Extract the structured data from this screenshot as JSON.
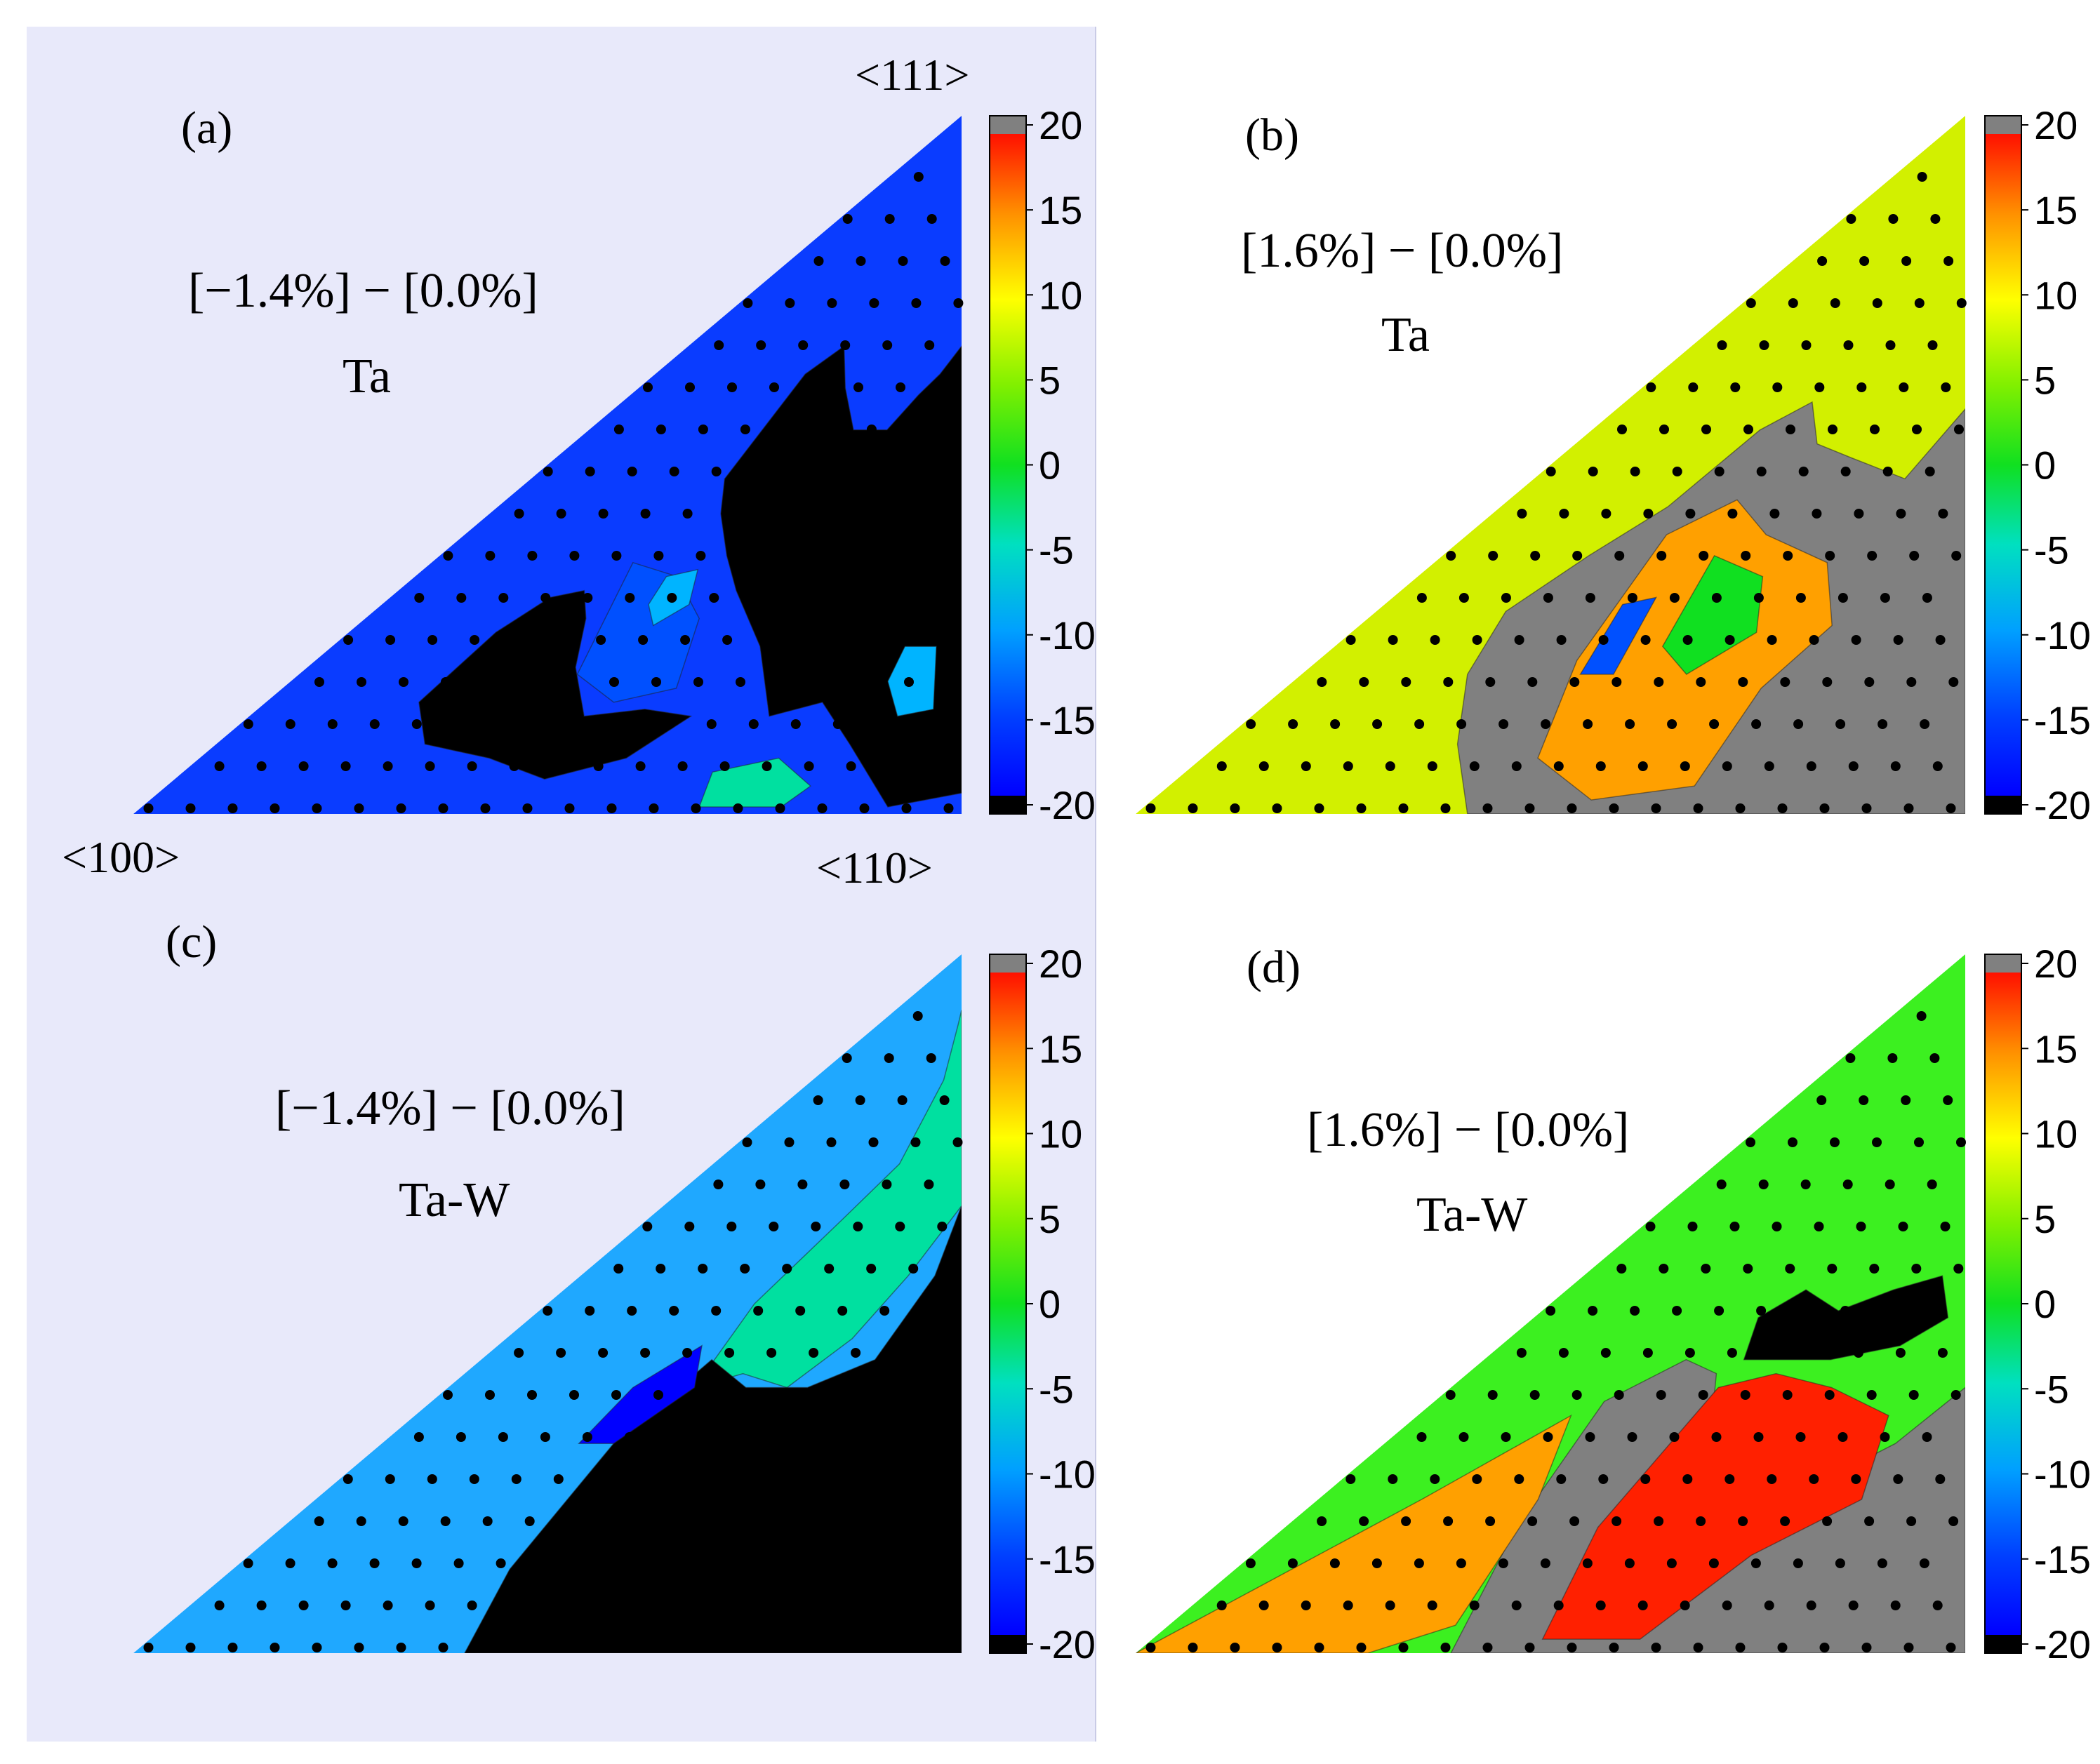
{
  "chart_data": [
    {
      "type": "heatmap",
      "panel_label": "(a)",
      "title": "[−1.4%] − [0.0%]",
      "material": "Ta",
      "corner_labels": {
        "top": "<111>",
        "left": "<100>",
        "right": "<110>"
      },
      "colorbar": {
        "min": -20,
        "max": 20,
        "ticks": [
          "20",
          "15",
          "10",
          "5",
          "0",
          "-5",
          "-10",
          "-15",
          "-20"
        ],
        "below_min_color": "#000000",
        "above_max_color": "#808080"
      },
      "background": "#0a3cff",
      "regions": [
        {
          "name": "black-region-large",
          "value": -25
        },
        {
          "name": "black-region-left",
          "value": -25
        },
        {
          "name": "blue-patch-center",
          "value": -15
        },
        {
          "name": "green-peak-center",
          "value": -8
        },
        {
          "name": "green-peak-right",
          "value": -10
        },
        {
          "name": "green-patch-bottom",
          "value": -5
        }
      ]
    },
    {
      "type": "heatmap",
      "panel_label": "(b)",
      "title": "[1.6%] − [0.0%]",
      "material": "Ta",
      "colorbar": {
        "min": -20,
        "max": 20,
        "ticks": [
          "20",
          "15",
          "10",
          "5",
          "0",
          "-5",
          "-10",
          "-15",
          "-20"
        ],
        "below_min_color": "#000000",
        "above_max_color": "#808080"
      },
      "background": "#d2f000",
      "regions": [
        {
          "name": "gray-region",
          "value": 25
        },
        {
          "name": "red-band",
          "value": 17
        },
        {
          "name": "green-pocket",
          "value": 0
        },
        {
          "name": "blue-pocket",
          "value": -15
        }
      ]
    },
    {
      "type": "heatmap",
      "panel_label": "(c)",
      "title": "[−1.4%] − [0.0%]",
      "material": "Ta-W",
      "colorbar": {
        "min": -20,
        "max": 20,
        "ticks": [
          "20",
          "15",
          "10",
          "5",
          "0",
          "-5",
          "-10",
          "-15",
          "-20"
        ],
        "below_min_color": "#000000",
        "above_max_color": "#808080"
      },
      "background": "#1fa8ff",
      "regions": [
        {
          "name": "green-upper-band",
          "value": -3
        },
        {
          "name": "black-region",
          "value": -25
        },
        {
          "name": "blue-border",
          "value": -18
        }
      ]
    },
    {
      "type": "heatmap",
      "panel_label": "(d)",
      "title": "[1.6%] − [0.0%]",
      "material": "Ta-W",
      "colorbar": {
        "min": -20,
        "max": 20,
        "ticks": [
          "20",
          "15",
          "10",
          "5",
          "0",
          "-5",
          "-10",
          "-15",
          "-20"
        ],
        "below_min_color": "#000000",
        "above_max_color": "#808080"
      },
      "background": "#3cf020",
      "regions": [
        {
          "name": "black-pocket",
          "value": -25
        },
        {
          "name": "gray-region",
          "value": 25
        },
        {
          "name": "red-region",
          "value": 18
        },
        {
          "name": "red-left",
          "value": 15
        }
      ]
    }
  ]
}
